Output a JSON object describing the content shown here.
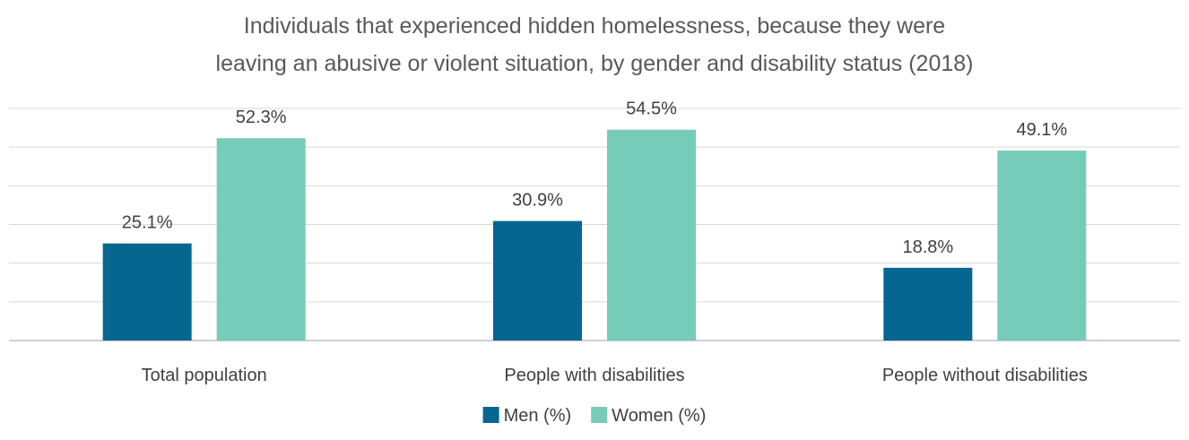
{
  "chart_data": {
    "type": "bar",
    "title_lines": [
      "Individuals that experienced hidden homelessness, because they were",
      "leaving an abusive or violent situation, by gender and disability status (2018)"
    ],
    "categories": [
      "Total population",
      "People with disabilities",
      "People without disabilities"
    ],
    "series": [
      {
        "name": "Men (%)",
        "values": [
          25.1,
          30.9,
          18.8
        ],
        "labels": [
          "25.1%",
          "30.9%",
          "18.8%"
        ],
        "color": "#056690"
      },
      {
        "name": "Women (%)",
        "values": [
          52.3,
          54.5,
          49.1
        ],
        "labels": [
          "52.3%",
          "54.5%",
          "49.1%"
        ],
        "color": "#76ccb8"
      }
    ],
    "ylim": [
      0,
      60
    ],
    "gridlines": 7,
    "grid": true,
    "legend_position": "bottom"
  }
}
